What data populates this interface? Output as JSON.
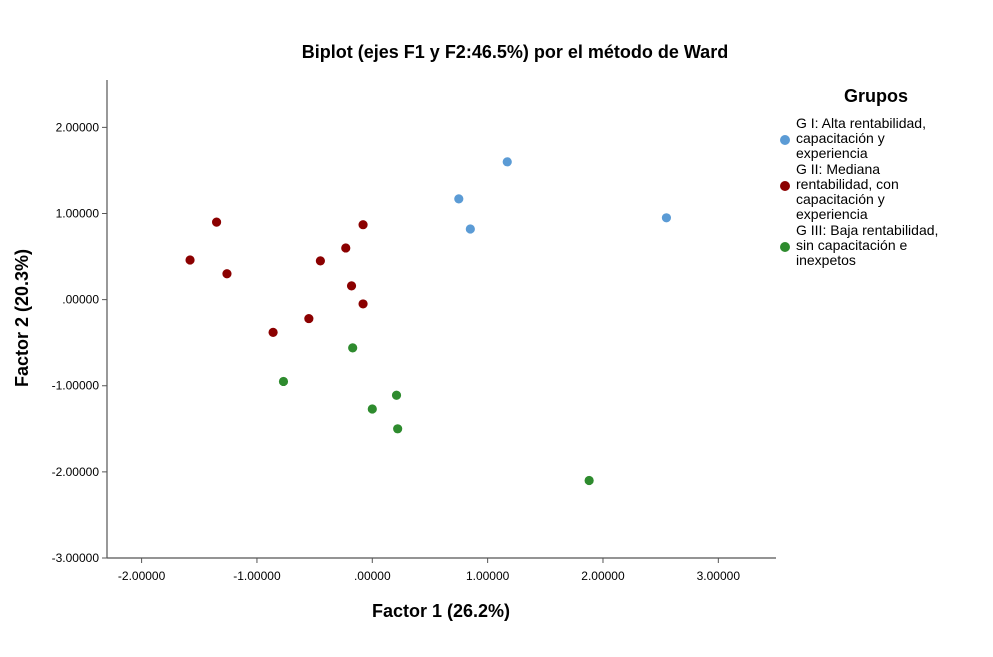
{
  "chart_data": {
    "type": "scatter",
    "title": "Biplot (ejes F1 y F2:46.5%) por el método de Ward",
    "xlabel": "Factor 1 (26.2%)",
    "ylabel": "Factor 2 (20.3%)",
    "xlim": [
      -2.3,
      3.5
    ],
    "ylim": [
      -3.0,
      2.55
    ],
    "xticks": [
      -2.0,
      -1.0,
      0.0,
      1.0,
      2.0,
      3.0
    ],
    "yticks": [
      -3.0,
      -2.0,
      -1.0,
      0.0,
      1.0,
      2.0
    ],
    "xtick_labels": [
      "-2.00000",
      "-1.00000",
      ".00000",
      "1.00000",
      "2.00000",
      "3.00000"
    ],
    "ytick_labels": [
      "-3.00000",
      "-2.00000",
      "-1.00000",
      ".00000",
      "1.00000",
      "2.00000"
    ],
    "grid": false,
    "legend": {
      "title": "Grupos",
      "placement": "right"
    },
    "series": [
      {
        "name": "G I: Alta rentabilidad, capacitación y experiencia",
        "legend_lines": [
          "G I: Alta rentabilidad,",
          "capacitación y",
          "experiencia"
        ],
        "color": "#5b9bd5",
        "points": [
          [
            0.75,
            1.17
          ],
          [
            1.17,
            1.6
          ],
          [
            0.85,
            0.82
          ],
          [
            2.55,
            0.95
          ]
        ]
      },
      {
        "name": "G II: Mediana rentabilidad, con capacitación y experiencia",
        "legend_lines": [
          "G II: Mediana",
          "rentabilidad, con",
          "capacitación y",
          "experiencia"
        ],
        "color": "#8b0000",
        "points": [
          [
            -1.35,
            0.9
          ],
          [
            -1.58,
            0.46
          ],
          [
            -1.26,
            0.3
          ],
          [
            -0.08,
            0.87
          ],
          [
            -0.23,
            0.6
          ],
          [
            -0.45,
            0.45
          ],
          [
            -0.18,
            0.16
          ],
          [
            -0.08,
            -0.05
          ],
          [
            -0.55,
            -0.22
          ],
          [
            -0.86,
            -0.38
          ]
        ]
      },
      {
        "name": "G III: Baja rentabilidad, sin capacitación e inexpetos",
        "legend_lines": [
          "G III: Baja rentabilidad,",
          "sin capacitación e",
          "inexpetos"
        ],
        "color": "#2e8b2e",
        "points": [
          [
            -0.17,
            -0.56
          ],
          [
            -0.77,
            -0.95
          ],
          [
            0.21,
            -1.11
          ],
          [
            0.0,
            -1.27
          ],
          [
            0.22,
            -1.5
          ],
          [
            1.88,
            -2.1
          ]
        ]
      }
    ]
  }
}
